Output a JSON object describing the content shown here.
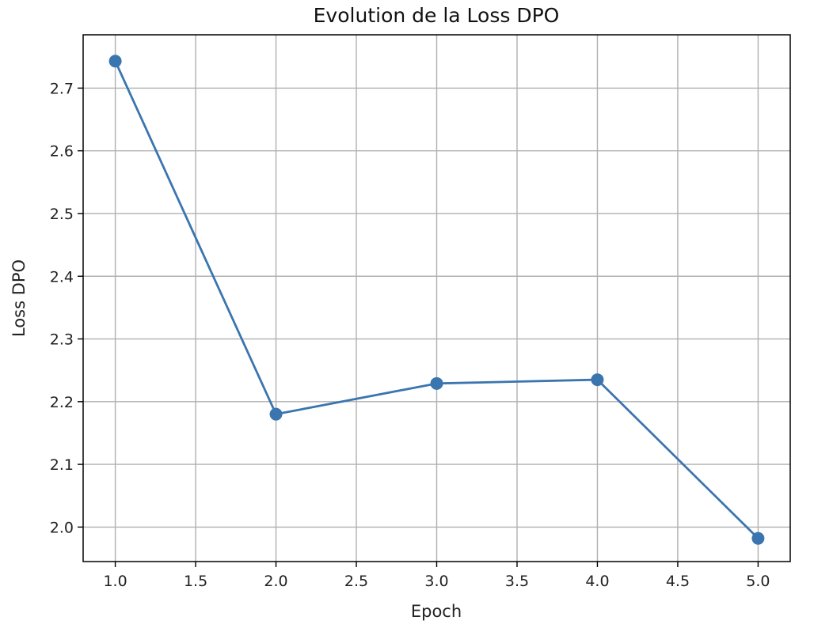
{
  "chart_data": {
    "type": "line",
    "title": "Evolution de la Loss DPO",
    "xlabel": "Epoch",
    "ylabel": "Loss DPO",
    "xlim": [
      0.8,
      5.2
    ],
    "ylim": [
      1.945,
      2.785
    ],
    "x_ticks": [
      1.0,
      1.5,
      2.0,
      2.5,
      3.0,
      3.5,
      4.0,
      4.5,
      5.0
    ],
    "x_tick_labels": [
      "1.0",
      "1.5",
      "2.0",
      "2.5",
      "3.0",
      "3.5",
      "4.0",
      "4.5",
      "5.0"
    ],
    "y_ticks": [
      2.0,
      2.1,
      2.2,
      2.3,
      2.4,
      2.5,
      2.6,
      2.7
    ],
    "y_tick_labels": [
      "2.0",
      "2.1",
      "2.2",
      "2.3",
      "2.4",
      "2.5",
      "2.6",
      "2.7"
    ],
    "grid": true,
    "series": [
      {
        "x": [
          1,
          2,
          3,
          4,
          5
        ],
        "values": [
          2.743,
          2.18,
          2.229,
          2.235,
          1.982
        ],
        "color": "#3b75af",
        "marker": "circle"
      }
    ]
  }
}
